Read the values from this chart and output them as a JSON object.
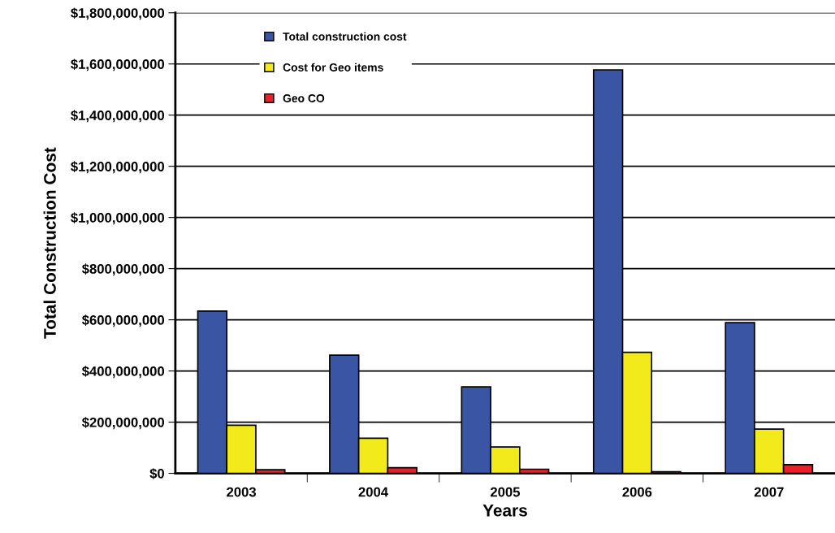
{
  "chart_data": {
    "type": "bar",
    "xlabel": "Years",
    "ylabel": "Total Construction Cost",
    "categories": [
      "2003",
      "2004",
      "2005",
      "2006",
      "2007"
    ],
    "series": [
      {
        "name": "Total construction cost",
        "color": "#3a55a4",
        "values": [
          634000000,
          462000000,
          338000000,
          1577000000,
          589000000
        ]
      },
      {
        "name": "Cost for Geo items",
        "color": "#f2ea1a",
        "values": [
          188000000,
          137000000,
          103000000,
          473000000,
          173000000
        ]
      },
      {
        "name": "Geo CO",
        "color": "#e8202a",
        "values": [
          14000000,
          22000000,
          16000000,
          6000000,
          34000000
        ]
      }
    ],
    "ylim": [
      0,
      1800000000
    ],
    "yticks": [
      {
        "value": 0,
        "label": "$0"
      },
      {
        "value": 200000000,
        "label": "$200,000,000"
      },
      {
        "value": 400000000,
        "label": "$400,000,000"
      },
      {
        "value": 600000000,
        "label": "$600,000,000"
      },
      {
        "value": 800000000,
        "label": "$800,000,000"
      },
      {
        "value": 1000000000,
        "label": "$1,000,000,000"
      },
      {
        "value": 1200000000,
        "label": "$1,200,000,000"
      },
      {
        "value": 1400000000,
        "label": "$1,400,000,000"
      },
      {
        "value": 1600000000,
        "label": "$1,600,000,000"
      },
      {
        "value": 1800000000,
        "label": "$1,800,000,000"
      }
    ],
    "grid": "y",
    "legend": "top left"
  }
}
